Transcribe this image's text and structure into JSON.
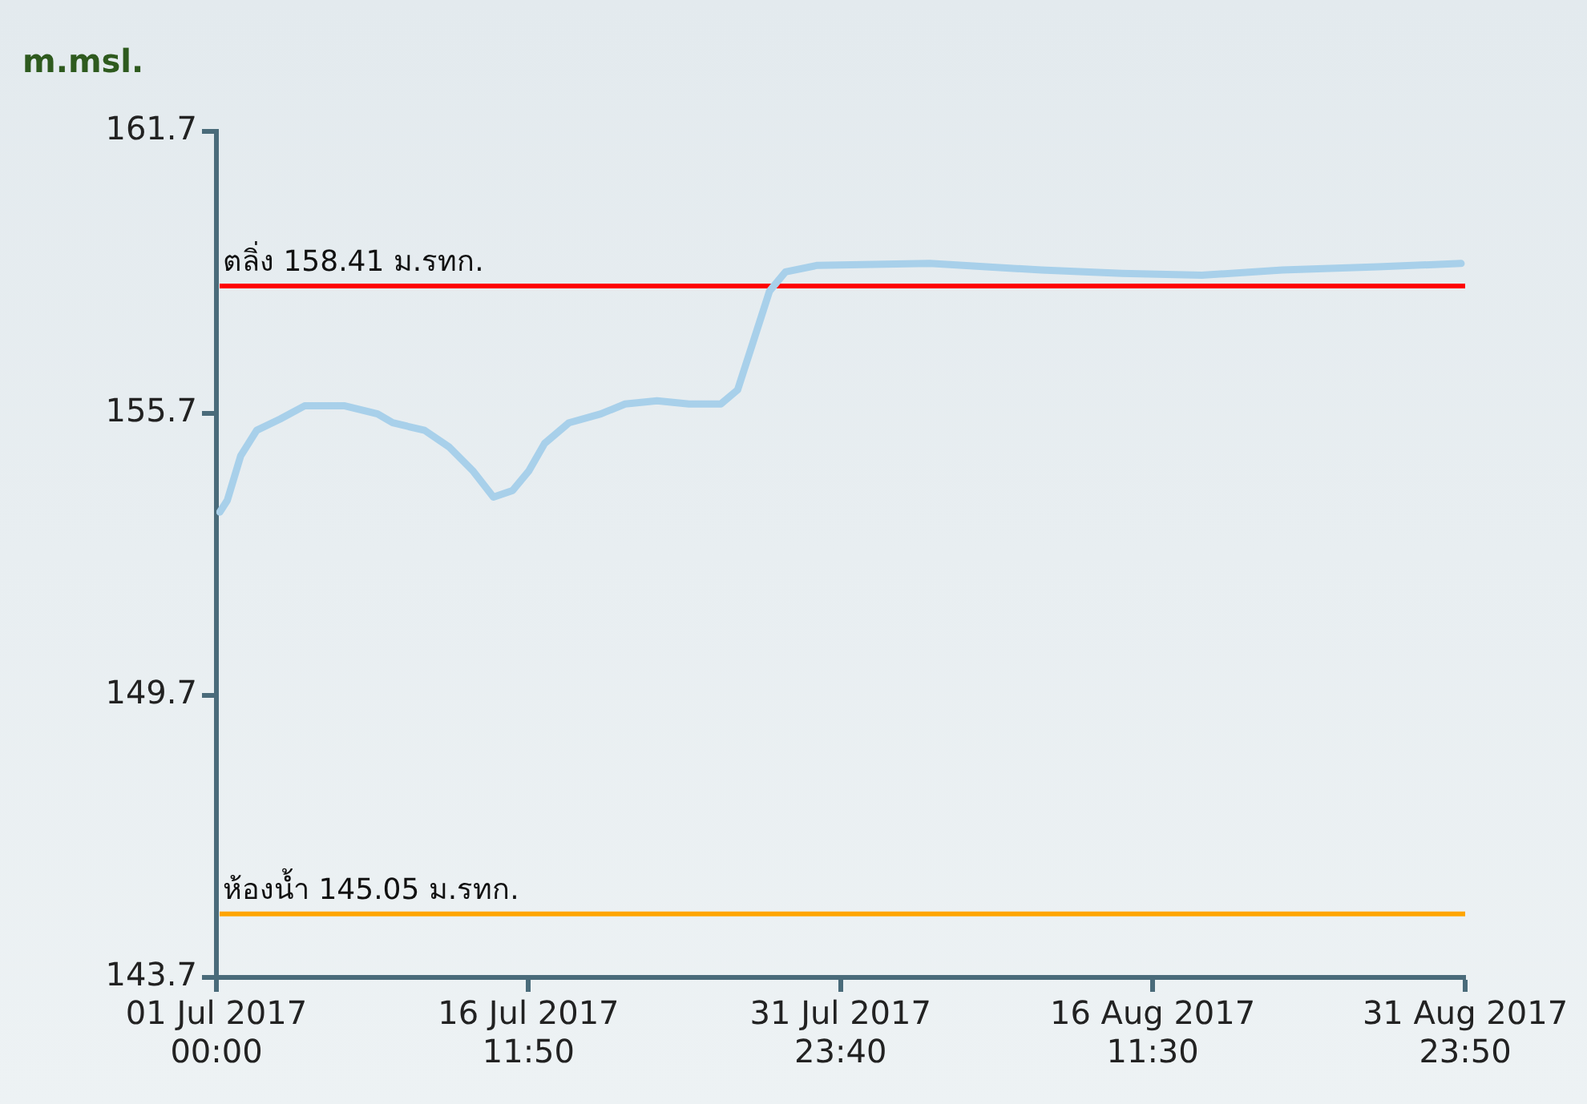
{
  "chart_data": {
    "type": "line",
    "ylabel": "m.msl.",
    "x": [
      "2017-07-01T04:00",
      "2017-07-01T13:00",
      "2017-07-02T05:00",
      "2017-07-03T00:00",
      "2017-07-04T04:00",
      "2017-07-05T09:00",
      "2017-07-07T09:00",
      "2017-07-09T00:00",
      "2017-07-09T18:00",
      "2017-07-11T08:00",
      "2017-07-12T13:00",
      "2017-07-13T18:00",
      "2017-07-14T18:00",
      "2017-07-15T17:00",
      "2017-07-16T12:00",
      "2017-07-17T07:00",
      "2017-07-18T12:00",
      "2017-07-20T02:00",
      "2017-07-21T07:00",
      "2017-07-22T21:00",
      "2017-07-24T11:00",
      "2017-07-26T01:00",
      "2017-07-26T21:00",
      "2017-07-27T16:00",
      "2017-07-28T11:00",
      "2017-07-29T06:00",
      "2017-07-30T20:00",
      "2017-08-05T10:00",
      "2017-08-10T23:00",
      "2017-08-14T23:00",
      "2017-08-18T22:00",
      "2017-08-22T22:00",
      "2017-08-27T16:00",
      "2017-08-31T19:00"
    ],
    "series": [
      {
        "color": "#a8d0ea",
        "values": [
          153.6,
          153.85,
          154.8,
          155.34,
          155.58,
          155.86,
          155.86,
          155.69,
          155.5,
          155.34,
          154.99,
          154.47,
          153.92,
          154.06,
          154.47,
          155.06,
          155.5,
          155.69,
          155.9,
          155.97,
          155.9,
          155.9,
          156.2,
          157.25,
          158.3,
          158.71,
          158.85,
          158.89,
          158.75,
          158.68,
          158.64,
          158.75,
          158.82,
          158.89
        ]
      }
    ],
    "xlim": [
      "2017-07-01T00:00",
      "2017-08-31T23:50"
    ],
    "xticks": [
      {
        "value": "2017-07-01T00:00",
        "label": "01 Jul 2017\n00:00"
      },
      {
        "value": "2017-07-16T11:50",
        "label": "16 Jul 2017\n11:50"
      },
      {
        "value": "2017-07-31T23:40",
        "label": "31 Jul 2017\n23:40"
      },
      {
        "value": "2017-08-16T11:30",
        "label": "16 Aug 2017\n11:30"
      },
      {
        "value": "2017-08-31T23:50",
        "label": "31 Aug 2017\n23:50"
      }
    ],
    "ylim": [
      143.7,
      161.7
    ],
    "yticks": [
      143.7,
      149.7,
      155.7,
      161.7
    ],
    "grid": false,
    "legend": false,
    "marker": "none",
    "line_style": "solid",
    "ref_lines": [
      {
        "axis": "y",
        "value": 158.41,
        "label": "ตลิ่ง 158.41 ม.รทก.",
        "color": "#ff0000"
      },
      {
        "axis": "y",
        "value": 145.05,
        "label": "ห้องน้ำ 145.05 ม.รทก.",
        "color": "#ffa500"
      }
    ]
  }
}
